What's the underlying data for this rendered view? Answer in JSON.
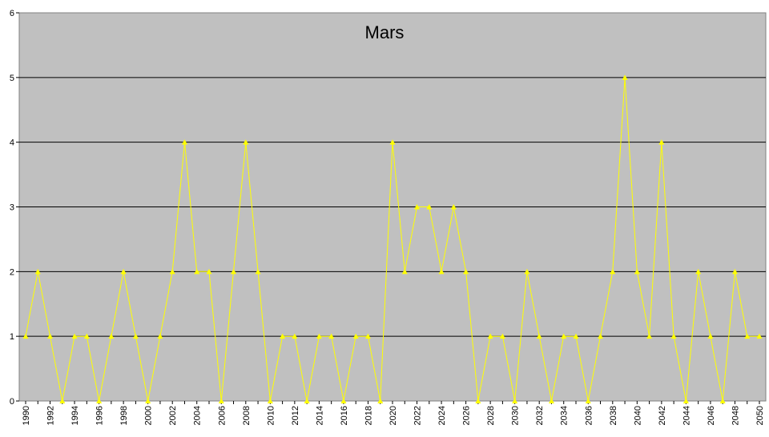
{
  "chart_data": {
    "type": "line",
    "title": "Mars",
    "xlabel": "",
    "ylabel": "",
    "ylim": [
      0,
      6
    ],
    "yticks": [
      0,
      1,
      2,
      3,
      4,
      5,
      6
    ],
    "x": [
      1990,
      1991,
      1992,
      1993,
      1994,
      1995,
      1996,
      1997,
      1998,
      1999,
      2000,
      2001,
      2002,
      2003,
      2004,
      2005,
      2006,
      2007,
      2008,
      2009,
      2010,
      2011,
      2012,
      2013,
      2014,
      2015,
      2016,
      2017,
      2018,
      2019,
      2020,
      2021,
      2022,
      2023,
      2024,
      2025,
      2026,
      2027,
      2028,
      2029,
      2030,
      2031,
      2032,
      2033,
      2034,
      2035,
      2036,
      2037,
      2038,
      2039,
      2040,
      2041,
      2042,
      2043,
      2044,
      2045,
      2046,
      2047,
      2048,
      2049,
      2050
    ],
    "xtick_labels": [
      "1990",
      "1992",
      "1994",
      "1996",
      "1998",
      "2000",
      "2002",
      "2004",
      "2006",
      "2008",
      "2010",
      "2012",
      "2014",
      "2016",
      "2018",
      "2020",
      "2022",
      "2024",
      "2026",
      "2028",
      "2030",
      "2032",
      "2034",
      "2036",
      "2038",
      "2040",
      "2042",
      "2044",
      "2046",
      "2048",
      "2050"
    ],
    "series": [
      {
        "values": [
          1,
          2,
          1,
          0,
          1,
          1,
          0,
          1,
          2,
          1,
          0,
          1,
          2,
          4,
          2,
          2,
          0,
          2,
          4,
          2,
          0,
          1,
          1,
          0,
          1,
          1,
          0,
          1,
          1,
          0,
          4,
          2,
          3,
          3,
          2,
          3,
          2,
          0,
          1,
          1,
          0,
          2,
          1,
          0,
          1,
          1,
          0,
          1,
          2,
          5,
          2,
          1,
          4,
          1,
          0,
          2,
          1,
          0,
          2,
          1,
          1
        ],
        "color": "#ffff00"
      }
    ],
    "grid": true,
    "legend": "none",
    "colors": {
      "plot_background": "#c0c0c0",
      "gridline": "#000000",
      "axis": "#808080"
    }
  }
}
